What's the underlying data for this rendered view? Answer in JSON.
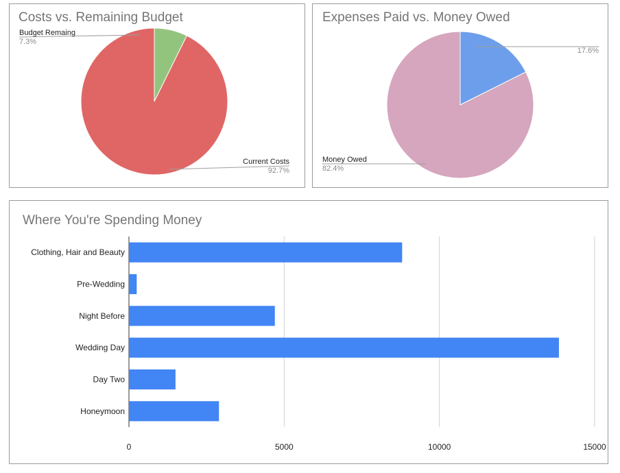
{
  "chart_data": [
    {
      "type": "pie",
      "title": "Costs vs. Remaining Budget",
      "slices": [
        {
          "label": "Budget Remaing",
          "value": 7.3,
          "display": "7.3%",
          "color": "#93c47d"
        },
        {
          "label": "Current Costs",
          "value": 92.7,
          "display": "92.7%",
          "color": "#e06666"
        }
      ]
    },
    {
      "type": "pie",
      "title": "Expenses Paid vs. Money Owed",
      "slices": [
        {
          "label": "",
          "value": 17.6,
          "display": "17.6%",
          "color": "#6d9eeb"
        },
        {
          "label": "Money Owed",
          "value": 82.4,
          "display": "82.4%",
          "color": "#d5a6bd"
        }
      ]
    },
    {
      "type": "bar",
      "orientation": "horizontal",
      "title": "Where You're Spending Money",
      "categories": [
        "Clothing, Hair and Beauty",
        "Pre-Wedding",
        "Night Before",
        "Wedding Day",
        "Day Two",
        "Honeymoon"
      ],
      "values": [
        8800,
        250,
        4700,
        13850,
        1500,
        2900
      ],
      "xlim": [
        0,
        15000
      ],
      "xticks": [
        "0",
        "5000",
        "10000",
        "15000"
      ],
      "grid": true,
      "color": "#4285f4"
    }
  ]
}
